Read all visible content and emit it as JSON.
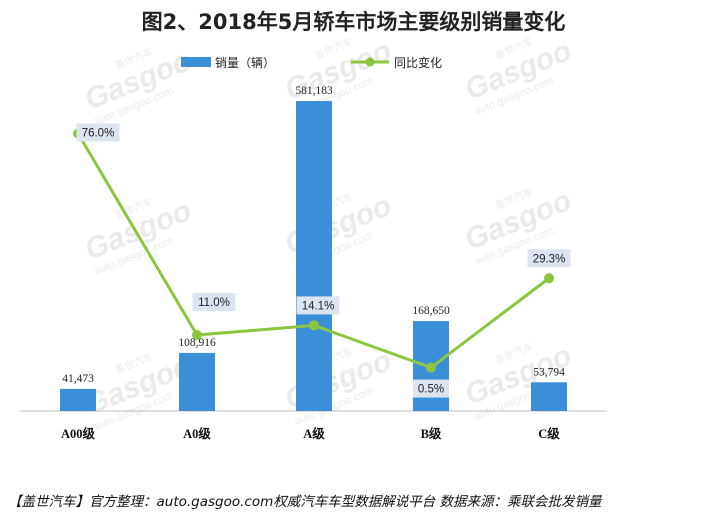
{
  "title": "图2、2018年5月轿车市场主要级别销量变化",
  "footer": "【盖世汽车】官方整理：auto.gasgoo.com权威汽车车型数据解说平台  数据来源：乘联会批发销量",
  "watermark": {
    "logo": "Gasgoo",
    "url": "auto.gasgoo.com",
    "cn": "盖世汽车"
  },
  "colors": {
    "bar": "#3b8fd8",
    "line": "#8cc63f",
    "label_box": "#dbe4f0",
    "axis": "#bfbfbf"
  },
  "chart_data": {
    "type": "bar",
    "categories": [
      "A00级",
      "A0级",
      "A级",
      "B级",
      "C级"
    ],
    "series": [
      {
        "name": "销量（辆）",
        "type": "bar",
        "values": [
          41473,
          108916,
          581183,
          168650,
          53794
        ],
        "labels": [
          "41,473",
          "108,916",
          "581,183",
          "168,650",
          "53,794"
        ]
      },
      {
        "name": "同比变化",
        "type": "line",
        "values": [
          76.0,
          11.0,
          14.1,
          0.5,
          29.3
        ],
        "labels": [
          "76.0%",
          "11.0%",
          "14.1%",
          "0.5%",
          "29.3%"
        ]
      }
    ],
    "bar_range": [
      0,
      600000
    ],
    "line_range": [
      -13.5,
      90
    ],
    "legend_position": "top-center",
    "grid": false
  }
}
